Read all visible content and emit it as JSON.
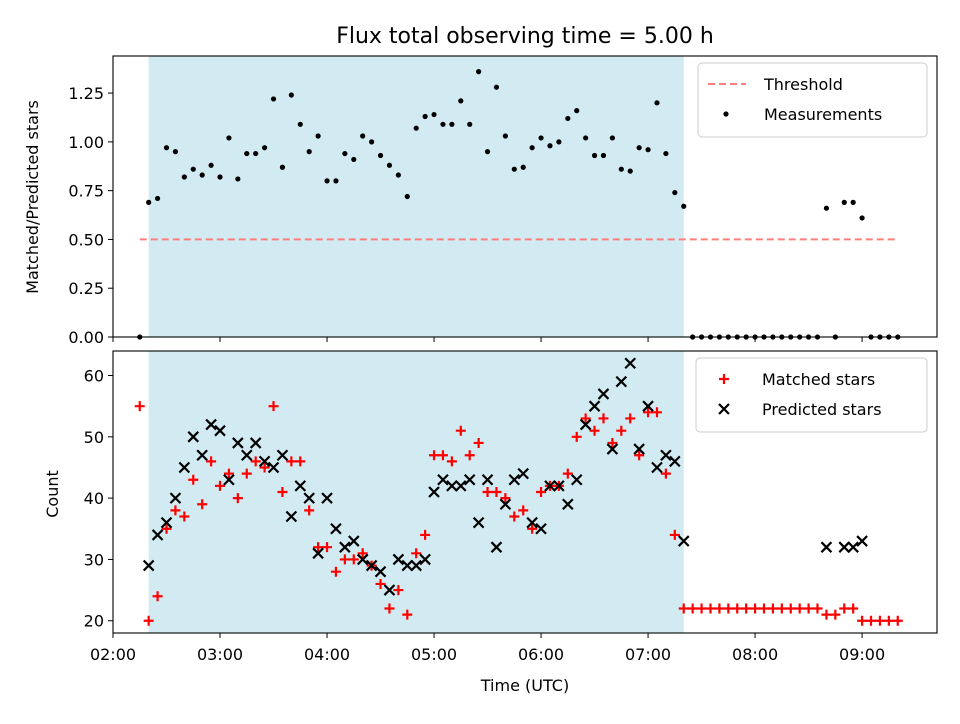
{
  "title": "Flux total observing time = 5.00 h",
  "colors": {
    "shade": "#add8e6",
    "threshold": "#ff7f7f",
    "measurement": "#000000",
    "matched": "#ff0000",
    "predicted": "#000000"
  },
  "chart_data": [
    {
      "type": "scatter",
      "title": "Flux total observing time = 5.00 h",
      "ylabel": "Matched/Predicted stars",
      "xlim": [
        "02:00",
        "09:42"
      ],
      "ylim": [
        0,
        1.44
      ],
      "yticks": [
        0.0,
        0.25,
        0.5,
        0.75,
        1.0,
        1.25
      ],
      "ytick_labels": [
        "0.00",
        "0.25",
        "0.50",
        "0.75",
        "1.00",
        "1.25"
      ],
      "shaded_interval": [
        "02:20",
        "07:20"
      ],
      "legend": "top-right",
      "threshold": {
        "name": "Threshold",
        "value": 0.5,
        "x": [
          "02:15",
          "09:20"
        ]
      },
      "series": [
        {
          "name": "Measurements",
          "points": [
            [
              "02:15",
              0.0
            ],
            [
              "02:20",
              0.69
            ],
            [
              "02:25",
              0.71
            ],
            [
              "02:30",
              0.97
            ],
            [
              "02:35",
              0.95
            ],
            [
              "02:40",
              0.82
            ],
            [
              "02:45",
              0.86
            ],
            [
              "02:50",
              0.83
            ],
            [
              "02:55",
              0.88
            ],
            [
              "03:00",
              0.82
            ],
            [
              "03:05",
              1.02
            ],
            [
              "03:10",
              0.81
            ],
            [
              "03:15",
              0.94
            ],
            [
              "03:20",
              0.94
            ],
            [
              "03:25",
              0.97
            ],
            [
              "03:30",
              1.22
            ],
            [
              "03:35",
              0.87
            ],
            [
              "03:40",
              1.24
            ],
            [
              "03:45",
              1.09
            ],
            [
              "03:50",
              0.95
            ],
            [
              "03:55",
              1.03
            ],
            [
              "04:00",
              0.8
            ],
            [
              "04:05",
              0.8
            ],
            [
              "04:10",
              0.94
            ],
            [
              "04:15",
              0.91
            ],
            [
              "04:20",
              1.03
            ],
            [
              "04:25",
              1.0
            ],
            [
              "04:30",
              0.93
            ],
            [
              "04:35",
              0.88
            ],
            [
              "04:40",
              0.83
            ],
            [
              "04:45",
              0.72
            ],
            [
              "04:50",
              1.07
            ],
            [
              "04:55",
              1.13
            ],
            [
              "05:00",
              1.14
            ],
            [
              "05:05",
              1.09
            ],
            [
              "05:10",
              1.09
            ],
            [
              "05:15",
              1.21
            ],
            [
              "05:20",
              1.09
            ],
            [
              "05:25",
              1.36
            ],
            [
              "05:30",
              0.95
            ],
            [
              "05:35",
              1.28
            ],
            [
              "05:40",
              1.03
            ],
            [
              "05:45",
              0.86
            ],
            [
              "05:50",
              0.87
            ],
            [
              "05:55",
              0.97
            ],
            [
              "06:00",
              1.02
            ],
            [
              "06:05",
              0.98
            ],
            [
              "06:10",
              1.0
            ],
            [
              "06:15",
              1.12
            ],
            [
              "06:20",
              1.16
            ],
            [
              "06:25",
              1.02
            ],
            [
              "06:30",
              0.93
            ],
            [
              "06:35",
              0.93
            ],
            [
              "06:40",
              1.02
            ],
            [
              "06:45",
              0.86
            ],
            [
              "06:50",
              0.85
            ],
            [
              "06:55",
              0.97
            ],
            [
              "07:00",
              0.96
            ],
            [
              "07:05",
              1.2
            ],
            [
              "07:10",
              0.94
            ],
            [
              "07:15",
              0.74
            ],
            [
              "07:20",
              0.67
            ],
            [
              "07:25",
              0.0
            ],
            [
              "07:30",
              0.0
            ],
            [
              "07:35",
              0.0
            ],
            [
              "07:40",
              0.0
            ],
            [
              "07:45",
              0.0
            ],
            [
              "07:50",
              0.0
            ],
            [
              "07:55",
              0.0
            ],
            [
              "08:00",
              0.0
            ],
            [
              "08:05",
              0.0
            ],
            [
              "08:10",
              0.0
            ],
            [
              "08:15",
              0.0
            ],
            [
              "08:20",
              0.0
            ],
            [
              "08:25",
              0.0
            ],
            [
              "08:30",
              0.0
            ],
            [
              "08:35",
              0.0
            ],
            [
              "08:40",
              0.66
            ],
            [
              "08:45",
              0.0
            ],
            [
              "08:50",
              0.69
            ],
            [
              "08:55",
              0.69
            ],
            [
              "09:00",
              0.61
            ],
            [
              "09:05",
              0.0
            ],
            [
              "09:10",
              0.0
            ],
            [
              "09:15",
              0.0
            ],
            [
              "09:20",
              0.0
            ]
          ]
        }
      ]
    },
    {
      "type": "scatter",
      "xlabel": "Time (UTC)",
      "ylabel": "Count",
      "xlim": [
        "02:00",
        "09:42"
      ],
      "ylim": [
        18,
        64
      ],
      "yticks": [
        20,
        30,
        40,
        50,
        60
      ],
      "xticks": [
        "02:00",
        "03:00",
        "04:00",
        "05:00",
        "06:00",
        "07:00",
        "08:00",
        "09:00"
      ],
      "shaded_interval": [
        "02:20",
        "07:20"
      ],
      "legend": "top-right",
      "series": [
        {
          "name": "Matched stars",
          "marker": "plus",
          "points": [
            [
              "02:15",
              55
            ],
            [
              "02:20",
              20
            ],
            [
              "02:25",
              24
            ],
            [
              "02:30",
              35
            ],
            [
              "02:35",
              38
            ],
            [
              "02:40",
              37
            ],
            [
              "02:45",
              43
            ],
            [
              "02:50",
              39
            ],
            [
              "02:55",
              46
            ],
            [
              "03:00",
              42
            ],
            [
              "03:05",
              44
            ],
            [
              "03:10",
              40
            ],
            [
              "03:15",
              44
            ],
            [
              "03:20",
              46
            ],
            [
              "03:25",
              45
            ],
            [
              "03:30",
              55
            ],
            [
              "03:35",
              41
            ],
            [
              "03:40",
              46
            ],
            [
              "03:45",
              46
            ],
            [
              "03:50",
              38
            ],
            [
              "03:55",
              32
            ],
            [
              "04:00",
              32
            ],
            [
              "04:05",
              28
            ],
            [
              "04:10",
              30
            ],
            [
              "04:15",
              30
            ],
            [
              "04:20",
              31
            ],
            [
              "04:25",
              29
            ],
            [
              "04:30",
              26
            ],
            [
              "04:35",
              22
            ],
            [
              "04:40",
              25
            ],
            [
              "04:45",
              21
            ],
            [
              "04:50",
              31
            ],
            [
              "04:55",
              34
            ],
            [
              "05:00",
              47
            ],
            [
              "05:05",
              47
            ],
            [
              "05:10",
              46
            ],
            [
              "05:15",
              51
            ],
            [
              "05:20",
              47
            ],
            [
              "05:25",
              49
            ],
            [
              "05:30",
              41
            ],
            [
              "05:35",
              41
            ],
            [
              "05:40",
              40
            ],
            [
              "05:45",
              37
            ],
            [
              "05:50",
              38
            ],
            [
              "05:55",
              35
            ],
            [
              "06:00",
              41
            ],
            [
              "06:05",
              42
            ],
            [
              "06:10",
              42
            ],
            [
              "06:15",
              44
            ],
            [
              "06:20",
              50
            ],
            [
              "06:25",
              53
            ],
            [
              "06:30",
              51
            ],
            [
              "06:35",
              53
            ],
            [
              "06:40",
              49
            ],
            [
              "06:45",
              51
            ],
            [
              "06:50",
              53
            ],
            [
              "06:55",
              47
            ],
            [
              "07:00",
              54
            ],
            [
              "07:05",
              54
            ],
            [
              "07:10",
              44
            ],
            [
              "07:15",
              34
            ],
            [
              "07:20",
              22
            ],
            [
              "07:25",
              22
            ],
            [
              "07:30",
              22
            ],
            [
              "07:35",
              22
            ],
            [
              "07:40",
              22
            ],
            [
              "07:45",
              22
            ],
            [
              "07:50",
              22
            ],
            [
              "07:55",
              22
            ],
            [
              "08:00",
              22
            ],
            [
              "08:05",
              22
            ],
            [
              "08:10",
              22
            ],
            [
              "08:15",
              22
            ],
            [
              "08:20",
              22
            ],
            [
              "08:25",
              22
            ],
            [
              "08:30",
              22
            ],
            [
              "08:35",
              22
            ],
            [
              "08:40",
              21
            ],
            [
              "08:45",
              21
            ],
            [
              "08:50",
              22
            ],
            [
              "08:55",
              22
            ],
            [
              "09:00",
              20
            ],
            [
              "09:05",
              20
            ],
            [
              "09:10",
              20
            ],
            [
              "09:15",
              20
            ],
            [
              "09:20",
              20
            ]
          ]
        },
        {
          "name": "Predicted stars",
          "marker": "x",
          "points": [
            [
              "02:20",
              29
            ],
            [
              "02:25",
              34
            ],
            [
              "02:30",
              36
            ],
            [
              "02:35",
              40
            ],
            [
              "02:40",
              45
            ],
            [
              "02:45",
              50
            ],
            [
              "02:50",
              47
            ],
            [
              "02:55",
              52
            ],
            [
              "03:00",
              51
            ],
            [
              "03:05",
              43
            ],
            [
              "03:10",
              49
            ],
            [
              "03:15",
              47
            ],
            [
              "03:20",
              49
            ],
            [
              "03:25",
              46
            ],
            [
              "03:30",
              45
            ],
            [
              "03:35",
              47
            ],
            [
              "03:40",
              37
            ],
            [
              "03:45",
              42
            ],
            [
              "03:50",
              40
            ],
            [
              "03:55",
              31
            ],
            [
              "04:00",
              40
            ],
            [
              "04:05",
              35
            ],
            [
              "04:10",
              32
            ],
            [
              "04:15",
              33
            ],
            [
              "04:20",
              30
            ],
            [
              "04:25",
              29
            ],
            [
              "04:30",
              28
            ],
            [
              "04:35",
              25
            ],
            [
              "04:40",
              30
            ],
            [
              "04:45",
              29
            ],
            [
              "04:50",
              29
            ],
            [
              "04:55",
              30
            ],
            [
              "05:00",
              41
            ],
            [
              "05:05",
              43
            ],
            [
              "05:10",
              42
            ],
            [
              "05:15",
              42
            ],
            [
              "05:20",
              43
            ],
            [
              "05:25",
              36
            ],
            [
              "05:30",
              43
            ],
            [
              "05:35",
              32
            ],
            [
              "05:40",
              39
            ],
            [
              "05:45",
              43
            ],
            [
              "05:50",
              44
            ],
            [
              "05:55",
              36
            ],
            [
              "06:00",
              35
            ],
            [
              "06:05",
              42
            ],
            [
              "06:10",
              42
            ],
            [
              "06:15",
              39
            ],
            [
              "06:20",
              43
            ],
            [
              "06:25",
              52
            ],
            [
              "06:30",
              55
            ],
            [
              "06:35",
              57
            ],
            [
              "06:40",
              48
            ],
            [
              "06:45",
              59
            ],
            [
              "06:50",
              62
            ],
            [
              "06:55",
              48
            ],
            [
              "07:00",
              55
            ],
            [
              "07:05",
              45
            ],
            [
              "07:10",
              47
            ],
            [
              "07:15",
              46
            ],
            [
              "07:20",
              33
            ],
            [
              "08:40",
              32
            ],
            [
              "08:50",
              32
            ],
            [
              "08:55",
              32
            ],
            [
              "09:00",
              33
            ]
          ]
        }
      ]
    }
  ]
}
